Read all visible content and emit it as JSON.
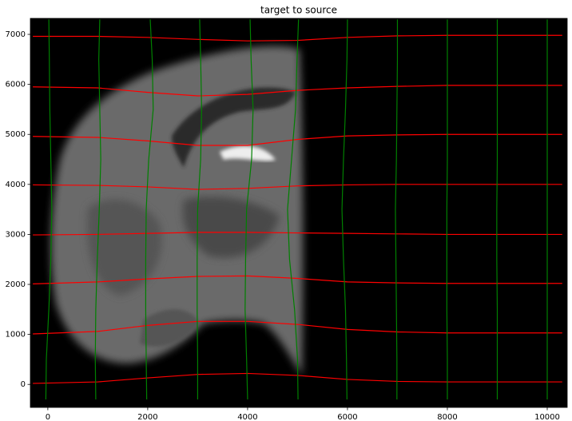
{
  "chart_data": {
    "type": "line",
    "title": "target to source",
    "xlim": [
      -350,
      10400
    ],
    "ylim": [
      -460,
      7320
    ],
    "xticks": [
      0,
      2000,
      4000,
      6000,
      8000,
      10000
    ],
    "yticks": [
      0,
      1000,
      2000,
      3000,
      4000,
      5000,
      6000,
      7000
    ],
    "series": [
      {
        "color": "#ff0000",
        "x": [
          -300,
          1000,
          2000,
          3000,
          4000,
          5000,
          6000,
          7000,
          8000,
          9000,
          10300
        ],
        "values": [
          20,
          50,
          130,
          200,
          220,
          180,
          100,
          60,
          50,
          50,
          50
        ]
      },
      {
        "color": "#ff0000",
        "x": [
          -300,
          1000,
          2000,
          3000,
          4000,
          5000,
          6000,
          7000,
          8000,
          9000,
          10300
        ],
        "values": [
          1010,
          1060,
          1180,
          1260,
          1260,
          1200,
          1100,
          1050,
          1030,
          1030,
          1030
        ]
      },
      {
        "color": "#ff0000",
        "x": [
          -300,
          1000,
          2000,
          3000,
          4000,
          5000,
          6000,
          7000,
          8000,
          9000,
          10300
        ],
        "values": [
          2010,
          2050,
          2110,
          2160,
          2170,
          2120,
          2050,
          2030,
          2020,
          2020,
          2020
        ]
      },
      {
        "color": "#ff0000",
        "x": [
          -300,
          1000,
          2000,
          3000,
          4000,
          5000,
          6000,
          7000,
          8000,
          9000,
          10300
        ],
        "values": [
          2990,
          3000,
          3020,
          3040,
          3040,
          3030,
          3020,
          3010,
          3000,
          3000,
          3000
        ]
      },
      {
        "color": "#ff0000",
        "x": [
          -300,
          1000,
          2000,
          3000,
          4000,
          5000,
          6000,
          7000,
          8000,
          9000,
          10300
        ],
        "values": [
          3990,
          3980,
          3950,
          3900,
          3920,
          3970,
          3990,
          4000,
          4000,
          4000,
          4000
        ]
      },
      {
        "color": "#ff0000",
        "x": [
          -300,
          1000,
          2000,
          3000,
          4000,
          5000,
          6000,
          7000,
          8000,
          9000,
          10300
        ],
        "values": [
          4960,
          4940,
          4870,
          4780,
          4780,
          4900,
          4970,
          4990,
          5000,
          5000,
          5000
        ]
      },
      {
        "color": "#ff0000",
        "x": [
          -300,
          1000,
          2000,
          3000,
          4000,
          5000,
          6000,
          7000,
          8000,
          9000,
          10300
        ],
        "values": [
          5950,
          5930,
          5840,
          5770,
          5800,
          5880,
          5930,
          5960,
          5980,
          5980,
          5980
        ]
      },
      {
        "color": "#ff0000",
        "x": [
          -300,
          1000,
          2000,
          3000,
          4000,
          5000,
          6000,
          7000,
          8000,
          9000,
          10300
        ],
        "values": [
          6960,
          6960,
          6940,
          6900,
          6870,
          6880,
          6940,
          6970,
          6980,
          6980,
          6980
        ]
      },
      {
        "color": "#008000",
        "x": [
          -40,
          -30,
          20,
          60,
          80,
          60,
          40,
          30,
          20
        ],
        "values": [
          -300,
          500,
          1500,
          2500,
          3500,
          4500,
          5500,
          6500,
          7300
        ]
      },
      {
        "color": "#008000",
        "x": [
          960,
          950,
          960,
          990,
          1030,
          1060,
          1040,
          1020,
          1040
        ],
        "values": [
          -300,
          500,
          1500,
          2500,
          3500,
          4500,
          5500,
          6500,
          7300
        ]
      },
      {
        "color": "#008000",
        "x": [
          1980,
          1970,
          1960,
          1960,
          1970,
          2020,
          2110,
          2090,
          2050
        ],
        "values": [
          -300,
          500,
          1500,
          2500,
          3500,
          4500,
          5500,
          6500,
          7300
        ]
      },
      {
        "color": "#008000",
        "x": [
          3000,
          3000,
          2990,
          2990,
          3000,
          3060,
          3080,
          3060,
          3040
        ],
        "values": [
          -300,
          500,
          1500,
          2500,
          3500,
          4500,
          5500,
          6500,
          7300
        ]
      },
      {
        "color": "#008000",
        "x": [
          4000,
          3980,
          3950,
          3960,
          3980,
          4080,
          4110,
          4070,
          4050
        ],
        "values": [
          -300,
          500,
          1500,
          2500,
          3500,
          4500,
          5500,
          6500,
          7300
        ]
      },
      {
        "color": "#008000",
        "x": [
          5010,
          5000,
          4940,
          4840,
          4800,
          4880,
          4960,
          4990,
          5020
        ],
        "values": [
          -300,
          500,
          1500,
          2500,
          3500,
          4500,
          5500,
          6500,
          7300
        ]
      },
      {
        "color": "#008000",
        "x": [
          5990,
          5980,
          5960,
          5920,
          5890,
          5920,
          5960,
          5990,
          6000
        ],
        "values": [
          -300,
          500,
          1500,
          2500,
          3500,
          4500,
          5500,
          6500,
          7300
        ]
      },
      {
        "color": "#008000",
        "x": [
          6990,
          6990,
          6980,
          6970,
          6960,
          6980,
          6990,
          7000,
          7000
        ],
        "values": [
          -300,
          500,
          1500,
          2500,
          3500,
          4500,
          5500,
          6500,
          7300
        ]
      },
      {
        "color": "#008000",
        "x": [
          8000,
          8000,
          7990,
          7990,
          7990,
          8000,
          8000,
          8000,
          8000
        ],
        "values": [
          -300,
          500,
          1500,
          2500,
          3500,
          4500,
          5500,
          6500,
          7300
        ]
      },
      {
        "color": "#008000",
        "x": [
          9000,
          9000,
          9000,
          8990,
          8990,
          9000,
          9000,
          9000,
          9000
        ],
        "values": [
          -300,
          500,
          1500,
          2500,
          3500,
          4500,
          5500,
          6500,
          7300
        ]
      },
      {
        "color": "#008000",
        "x": [
          10000,
          10000,
          10000,
          10000,
          10000,
          10000,
          10000,
          10000,
          10000
        ],
        "values": [
          -300,
          500,
          1500,
          2500,
          3500,
          4500,
          5500,
          6500,
          7300
        ]
      }
    ]
  }
}
